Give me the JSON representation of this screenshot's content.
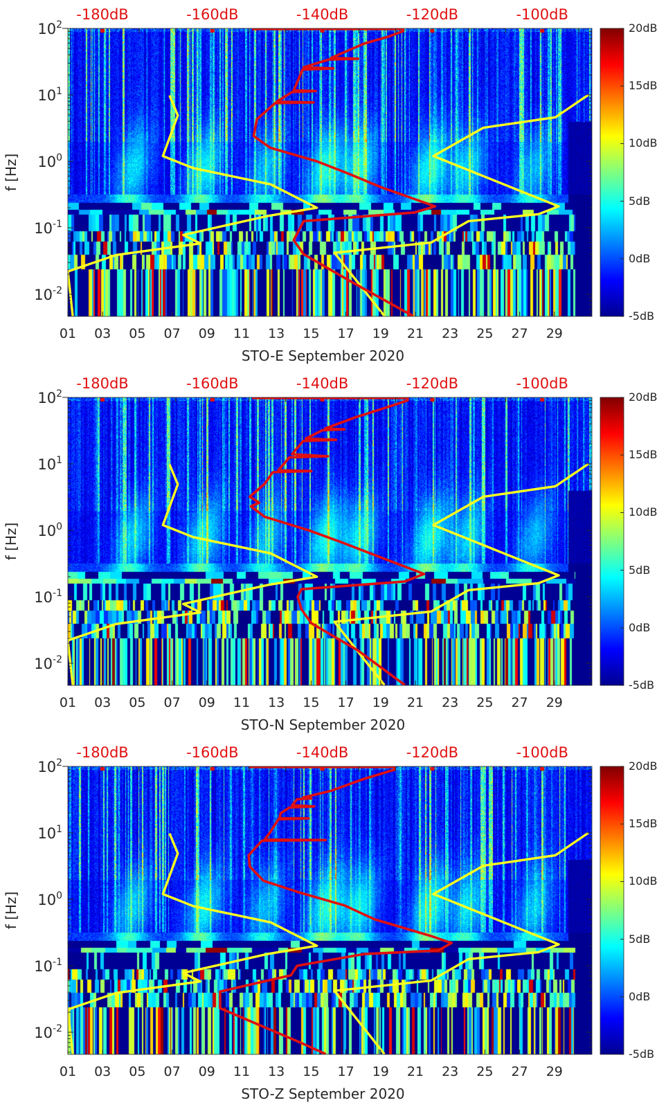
{
  "colors": {
    "low_model": "#ffff20",
    "high_model": "#ffff20",
    "median": "#e01010",
    "axis_label_red": "#e01010"
  },
  "chart_data": [
    {
      "type": "heatmap",
      "xlabel": "STO-E September 2020",
      "ylabel": "f [Hz]",
      "yscale": "log",
      "x_range_days": [
        1,
        31.15
      ],
      "y_range_hz": [
        0.00467,
        100
      ],
      "xticks": [
        "01",
        "03",
        "05",
        "07",
        "09",
        "11",
        "13",
        "15",
        "17",
        "19",
        "21",
        "23",
        "25",
        "27",
        "29"
      ],
      "xtick_days": [
        1,
        3,
        5,
        7,
        9,
        11,
        13,
        15,
        17,
        19,
        21,
        23,
        25,
        27,
        29
      ],
      "yticks": [
        {
          "value": 100,
          "base": "10",
          "exp": "2"
        },
        {
          "value": 10,
          "base": "10",
          "exp": "1"
        },
        {
          "value": 1,
          "base": "10",
          "exp": "0"
        },
        {
          "value": 0.1,
          "base": "10",
          "exp": "-1"
        },
        {
          "value": 0.01,
          "base": "10",
          "exp": "-2"
        }
      ],
      "top_axis": {
        "range_db": [
          -186.3,
          -90.9
        ],
        "ticks": [
          {
            "value": -180,
            "label": "-180dB"
          },
          {
            "value": -160,
            "label": "-160dB"
          },
          {
            "value": -140,
            "label": "-140dB"
          },
          {
            "value": -120,
            "label": "-120dB"
          },
          {
            "value": -100,
            "label": "-100dB"
          }
        ]
      },
      "colorbar": {
        "range_db": [
          -5,
          20
        ],
        "colormap": "jet",
        "ticks": [
          {
            "value": 20,
            "label": "20dB"
          },
          {
            "value": 15,
            "label": "15dB"
          },
          {
            "value": 10,
            "label": "10dB"
          },
          {
            "value": 5,
            "label": "5dB"
          },
          {
            "value": 0,
            "label": "0dB"
          },
          {
            "value": -5,
            "label": "-5dB"
          }
        ]
      },
      "series": {
        "low_model": {
          "color": "#ffff20",
          "points": [
            [
              9.8,
              -167.8
            ],
            [
              4.9,
              -166.3
            ],
            [
              1.2,
              -169.0
            ],
            [
              0.79,
              -163.5
            ],
            [
              0.45,
              -149.4
            ],
            [
              0.2,
              -141
            ],
            [
              0.15,
              -150
            ],
            [
              0.078,
              -165.3
            ],
            [
              0.058,
              -162.2
            ],
            [
              0.039,
              -177.5
            ],
            [
              0.022,
              -186.3
            ],
            [
              0.0047,
              -185.4
            ]
          ]
        },
        "high_model": {
          "color": "#ffff20",
          "points": [
            [
              10,
              -91.6
            ],
            [
              4.6,
              -97.6
            ],
            [
              3.2,
              -110.7
            ],
            [
              1.2,
              -119.8
            ],
            [
              0.21,
              -97
            ],
            [
              0.16,
              -100.7
            ],
            [
              0.126,
              -113.4
            ],
            [
              0.06,
              -120.2
            ],
            [
              0.042,
              -137.8
            ],
            [
              0.0047,
              -128.7
            ]
          ]
        },
        "median": {
          "color": "#e01010",
          "points": [
            [
              98,
              -152.8
            ],
            [
              98,
              -125.3
            ],
            [
              91,
              -125.3
            ],
            [
              75,
              -128
            ],
            [
              59,
              -132.4
            ],
            [
              36,
              -138.4
            ],
            [
              35,
              -133.5
            ],
            [
              34,
              -138.8
            ],
            [
              26,
              -143.4
            ],
            [
              25,
              -138
            ],
            [
              24,
              -143.6
            ],
            [
              11.7,
              -145.2
            ],
            [
              11.4,
              -141.2
            ],
            [
              11,
              -145.5
            ],
            [
              7.9,
              -148.3
            ],
            [
              7.7,
              -141.6
            ],
            [
              7.5,
              -148.6
            ],
            [
              4.3,
              -151.9
            ],
            [
              2.4,
              -152.5
            ],
            [
              1.6,
              -149.5
            ],
            [
              1.0,
              -141.0
            ],
            [
              0.66,
              -135.4
            ],
            [
              0.41,
              -129.4
            ],
            [
              0.21,
              -119.5
            ],
            [
              0.17,
              -123.2
            ],
            [
              0.126,
              -143.4
            ],
            [
              0.065,
              -145.2
            ],
            [
              0.04,
              -143.4
            ],
            [
              0.0155,
              -134.8
            ],
            [
              0.0047,
              -123.5
            ]
          ]
        }
      }
    },
    {
      "type": "heatmap",
      "xlabel": "STO-N September 2020",
      "ylabel": "f [Hz]",
      "yscale": "log",
      "x_range_days": [
        1,
        31.15
      ],
      "y_range_hz": [
        0.00467,
        100
      ],
      "xticks": [
        "01",
        "03",
        "05",
        "07",
        "09",
        "11",
        "13",
        "15",
        "17",
        "19",
        "21",
        "23",
        "25",
        "27",
        "29"
      ],
      "xtick_days": [
        1,
        3,
        5,
        7,
        9,
        11,
        13,
        15,
        17,
        19,
        21,
        23,
        25,
        27,
        29
      ],
      "yticks": [
        {
          "value": 100,
          "base": "10",
          "exp": "2"
        },
        {
          "value": 10,
          "base": "10",
          "exp": "1"
        },
        {
          "value": 1,
          "base": "10",
          "exp": "0"
        },
        {
          "value": 0.1,
          "base": "10",
          "exp": "-1"
        },
        {
          "value": 0.01,
          "base": "10",
          "exp": "-2"
        }
      ],
      "top_axis": {
        "range_db": [
          -186.3,
          -90.9
        ],
        "ticks": [
          {
            "value": -180,
            "label": "-180dB"
          },
          {
            "value": -160,
            "label": "-160dB"
          },
          {
            "value": -140,
            "label": "-140dB"
          },
          {
            "value": -120,
            "label": "-120dB"
          },
          {
            "value": -100,
            "label": "-100dB"
          }
        ]
      },
      "colorbar": {
        "range_db": [
          -5,
          20
        ],
        "colormap": "jet",
        "ticks": [
          {
            "value": 20,
            "label": "20dB"
          },
          {
            "value": 15,
            "label": "15dB"
          },
          {
            "value": 10,
            "label": "10dB"
          },
          {
            "value": 5,
            "label": "5dB"
          },
          {
            "value": 0,
            "label": "0dB"
          },
          {
            "value": -5,
            "label": "-5dB"
          }
        ]
      },
      "series": {
        "low_model": {
          "color": "#ffff20",
          "points": [
            [
              9.8,
              -167.8
            ],
            [
              4.9,
              -166.3
            ],
            [
              1.2,
              -169.0
            ],
            [
              0.79,
              -163.5
            ],
            [
              0.45,
              -149.4
            ],
            [
              0.2,
              -141
            ],
            [
              0.15,
              -150
            ],
            [
              0.078,
              -165.3
            ],
            [
              0.058,
              -162.2
            ],
            [
              0.039,
              -177.5
            ],
            [
              0.022,
              -186.3
            ],
            [
              0.0047,
              -185.4
            ]
          ]
        },
        "high_model": {
          "color": "#ffff20",
          "points": [
            [
              10,
              -91.6
            ],
            [
              4.6,
              -97.6
            ],
            [
              3.2,
              -110.7
            ],
            [
              1.2,
              -119.8
            ],
            [
              0.21,
              -97
            ],
            [
              0.16,
              -100.7
            ],
            [
              0.126,
              -113.4
            ],
            [
              0.06,
              -120.2
            ],
            [
              0.042,
              -137.8
            ],
            [
              0.0047,
              -128.7
            ]
          ]
        },
        "median": {
          "color": "#e01010",
          "points": [
            [
              98,
              -152.8
            ],
            [
              98,
              -124.5
            ],
            [
              90,
              -124.5
            ],
            [
              70,
              -128.5
            ],
            [
              50,
              -134
            ],
            [
              34,
              -139.5
            ],
            [
              33,
              -136
            ],
            [
              32,
              -140
            ],
            [
              24,
              -143
            ],
            [
              23,
              -137.5
            ],
            [
              22,
              -143.5
            ],
            [
              14,
              -145.5
            ],
            [
              13,
              -139
            ],
            [
              12.5,
              -146
            ],
            [
              8,
              -148
            ],
            [
              7.8,
              -142
            ],
            [
              7.5,
              -149
            ],
            [
              5,
              -150.5
            ],
            [
              3.2,
              -153.2
            ],
            [
              2.6,
              -151.5
            ],
            [
              2.3,
              -153
            ],
            [
              1.6,
              -150.5
            ],
            [
              1.0,
              -142.5
            ],
            [
              0.66,
              -136.5
            ],
            [
              0.41,
              -130
            ],
            [
              0.22,
              -121.5
            ],
            [
              0.17,
              -125
            ],
            [
              0.13,
              -143.8
            ],
            [
              0.1,
              -144.5
            ],
            [
              0.065,
              -143.8
            ],
            [
              0.04,
              -142
            ],
            [
              0.0155,
              -133.5
            ],
            [
              0.0047,
              -125
            ]
          ]
        }
      }
    },
    {
      "type": "heatmap",
      "xlabel": "STO-Z September 2020",
      "ylabel": "f [Hz]",
      "yscale": "log",
      "x_range_days": [
        1,
        31.15
      ],
      "y_range_hz": [
        0.00467,
        100
      ],
      "xticks": [
        "01",
        "03",
        "05",
        "07",
        "09",
        "11",
        "13",
        "15",
        "17",
        "19",
        "21",
        "23",
        "25",
        "27",
        "29"
      ],
      "xtick_days": [
        1,
        3,
        5,
        7,
        9,
        11,
        13,
        15,
        17,
        19,
        21,
        23,
        25,
        27,
        29
      ],
      "yticks": [
        {
          "value": 100,
          "base": "10",
          "exp": "2"
        },
        {
          "value": 10,
          "base": "10",
          "exp": "1"
        },
        {
          "value": 1,
          "base": "10",
          "exp": "0"
        },
        {
          "value": 0.1,
          "base": "10",
          "exp": "-1"
        },
        {
          "value": 0.01,
          "base": "10",
          "exp": "-2"
        }
      ],
      "top_axis": {
        "range_db": [
          -186.3,
          -90.9
        ],
        "ticks": [
          {
            "value": -180,
            "label": "-180dB"
          },
          {
            "value": -160,
            "label": "-160dB"
          },
          {
            "value": -140,
            "label": "-140dB"
          },
          {
            "value": -120,
            "label": "-120dB"
          },
          {
            "value": -100,
            "label": "-100dB"
          }
        ]
      },
      "colorbar": {
        "range_db": [
          -5,
          20
        ],
        "colormap": "jet",
        "ticks": [
          {
            "value": 20,
            "label": "20dB"
          },
          {
            "value": 15,
            "label": "15dB"
          },
          {
            "value": 10,
            "label": "10dB"
          },
          {
            "value": 5,
            "label": "5dB"
          },
          {
            "value": 0,
            "label": "0dB"
          },
          {
            "value": -5,
            "label": "-5dB"
          }
        ]
      },
      "series": {
        "low_model": {
          "color": "#ffff20",
          "points": [
            [
              9.8,
              -167.8
            ],
            [
              4.9,
              -166.3
            ],
            [
              1.2,
              -169.0
            ],
            [
              0.79,
              -163.5
            ],
            [
              0.45,
              -149.4
            ],
            [
              0.2,
              -141
            ],
            [
              0.15,
              -150
            ],
            [
              0.078,
              -165.3
            ],
            [
              0.058,
              -162.2
            ],
            [
              0.039,
              -177.5
            ],
            [
              0.022,
              -186.3
            ],
            [
              0.0047,
              -185.4
            ]
          ]
        },
        "high_model": {
          "color": "#ffff20",
          "points": [
            [
              10,
              -91.6
            ],
            [
              4.6,
              -97.6
            ],
            [
              3.2,
              -110.7
            ],
            [
              1.2,
              -119.8
            ],
            [
              0.21,
              -97
            ],
            [
              0.16,
              -100.7
            ],
            [
              0.126,
              -113.4
            ],
            [
              0.06,
              -120.2
            ],
            [
              0.042,
              -137.8
            ],
            [
              0.0047,
              -128.7
            ]
          ]
        },
        "median": {
          "color": "#e01010",
          "points": [
            [
              98,
              -153.4
            ],
            [
              98,
              -126.9
            ],
            [
              89,
              -126.9
            ],
            [
              65,
              -132.4
            ],
            [
              43,
              -138.4
            ],
            [
              34,
              -143.5
            ],
            [
              33,
              -142
            ],
            [
              32,
              -144.6
            ],
            [
              26,
              -145.5
            ],
            [
              25,
              -141.5
            ],
            [
              24,
              -146
            ],
            [
              19.6,
              -147.6
            ],
            [
              16.6,
              -147.8
            ],
            [
              16.5,
              -142.5
            ],
            [
              16,
              -148
            ],
            [
              10.2,
              -149.5
            ],
            [
              7.9,
              -150.5
            ],
            [
              7.8,
              -139.4
            ],
            [
              7.6,
              -151
            ],
            [
              4.6,
              -153.4
            ],
            [
              3.1,
              -153.2
            ],
            [
              1.9,
              -150.7
            ],
            [
              1.3,
              -144.6
            ],
            [
              0.81,
              -136
            ],
            [
              0.5,
              -130.5
            ],
            [
              0.28,
              -120.2
            ],
            [
              0.22,
              -116.5
            ],
            [
              0.17,
              -118.9
            ],
            [
              0.15,
              -132.4
            ],
            [
              0.1,
              -144.6
            ],
            [
              0.072,
              -145.7
            ],
            [
              0.041,
              -158.6
            ],
            [
              0.023,
              -158.6
            ],
            [
              0.007,
              -144
            ],
            [
              0.0047,
              -139.4
            ]
          ]
        }
      }
    }
  ]
}
